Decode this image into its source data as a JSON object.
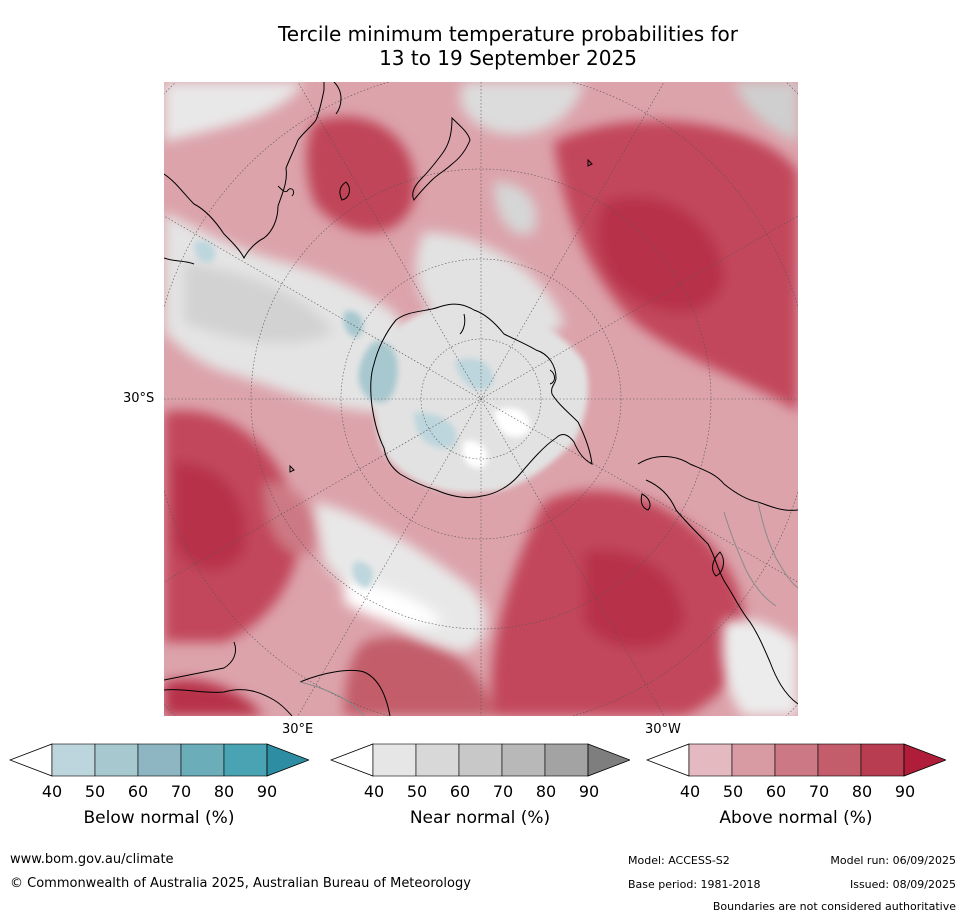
{
  "title": {
    "line1": "Tercile minimum temperature probabilities for",
    "line2": "13 to 19 September 2025"
  },
  "map": {
    "projection": "south-polar stereographic",
    "labels": {
      "lat_30s": "30°S",
      "lon_30e": "30°E",
      "lon_30w": "30°W"
    },
    "colors": {
      "land_outline": "#000000",
      "graticule": "#555555",
      "border_lines": "#8a8a8a"
    }
  },
  "colorbars": [
    {
      "title": "Below normal (%)",
      "ticks": [
        "40",
        "50",
        "60",
        "70",
        "80",
        "90"
      ],
      "colors": [
        "#ffffff",
        "#bdd6dd",
        "#a7c8cf",
        "#8db6c2",
        "#6badb9",
        "#4aa3b2",
        "#2d8ea3"
      ]
    },
    {
      "title": "Near normal (%)",
      "ticks": [
        "40",
        "50",
        "60",
        "70",
        "80",
        "90"
      ],
      "colors": [
        "#ffffff",
        "#e6e6e6",
        "#d8d8d8",
        "#c8c8c8",
        "#b8b8b8",
        "#a3a3a3",
        "#7e7e7e"
      ]
    },
    {
      "title": "Above normal (%)",
      "ticks": [
        "40",
        "50",
        "60",
        "70",
        "80",
        "90"
      ],
      "colors": [
        "#ffffff",
        "#e4b9bf",
        "#d89aa3",
        "#cd7985",
        "#c35d6b",
        "#b83d50",
        "#b01d38"
      ]
    }
  ],
  "footer": {
    "website": "www.bom.gov.au/climate",
    "copyright": "© Commonwealth of Australia 2025, Australian Bureau of Meteorology",
    "model": "Model: ACCESS-S2",
    "base_period": "Base period: 1981-2018",
    "model_run": "Model run: 06/09/2025",
    "issued": "Issued: 08/09/2025",
    "disclaimer": "Boundaries are not considered authoritative"
  }
}
